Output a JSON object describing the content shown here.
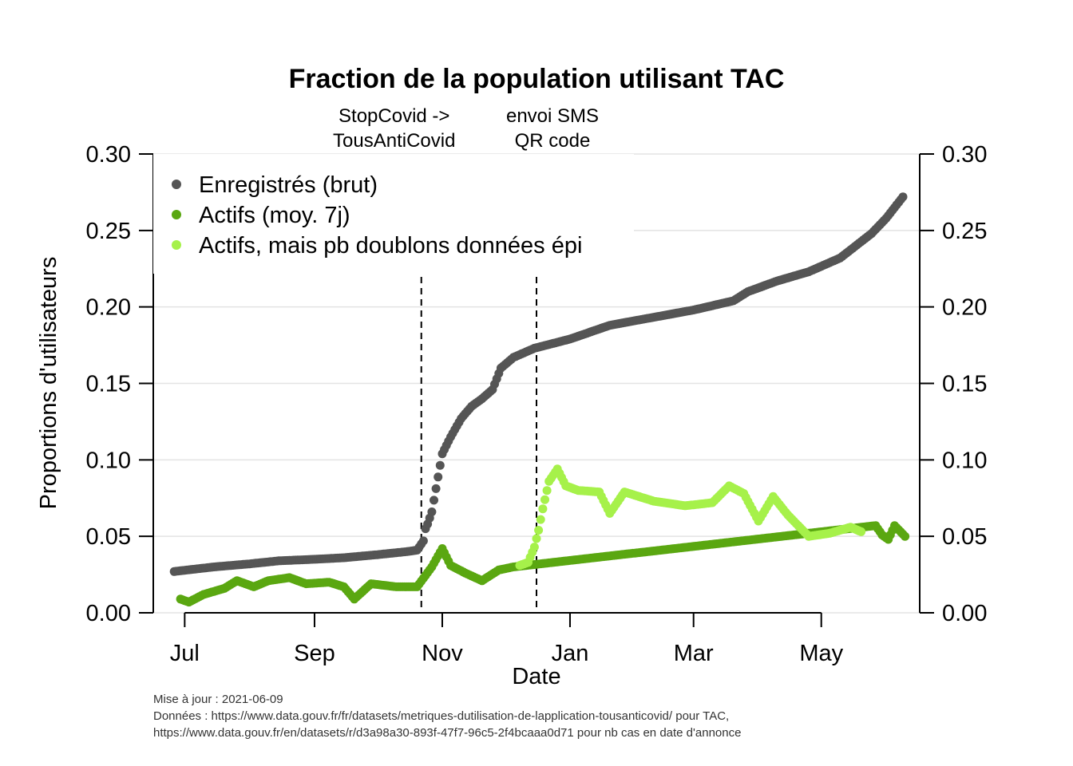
{
  "chart_data": {
    "type": "scatter",
    "title": "Fraction de la population utilisant TAC",
    "xlabel": "Date",
    "ylabel": "Proportions d'utilisateurs",
    "x_range": [
      "2020-06-16",
      "2021-06-17"
    ],
    "ylim": [
      0,
      0.3
    ],
    "y_ticks": [
      "0.00",
      "0.05",
      "0.10",
      "0.15",
      "0.20",
      "0.25",
      "0.30"
    ],
    "x_ticks": [
      {
        "date": "2020-07-01",
        "label": "Jul"
      },
      {
        "date": "2020-09-01",
        "label": "Sep"
      },
      {
        "date": "2020-11-01",
        "label": "Nov"
      },
      {
        "date": "2021-01-01",
        "label": "Jan"
      },
      {
        "date": "2021-03-01",
        "label": "Mar"
      },
      {
        "date": "2021-05-01",
        "label": "May"
      }
    ],
    "grid": "horizontal",
    "legend_position": "top-left",
    "events": [
      {
        "date": "2020-10-22",
        "label_lines": [
          "StopCovid ->",
          "TousAntiCovid"
        ]
      },
      {
        "date": "2020-12-16",
        "label_lines": [
          "envoi SMS",
          "QR code"
        ]
      }
    ],
    "series": [
      {
        "name": "Enregistrés (brut)",
        "color": "#555555",
        "points": [
          [
            "2020-06-26",
            0.027
          ],
          [
            "2020-07-15",
            0.03
          ],
          [
            "2020-08-01",
            0.032
          ],
          [
            "2020-08-15",
            0.034
          ],
          [
            "2020-09-01",
            0.035
          ],
          [
            "2020-09-15",
            0.036
          ],
          [
            "2020-10-01",
            0.038
          ],
          [
            "2020-10-15",
            0.04
          ],
          [
            "2020-10-20",
            0.041
          ],
          [
            "2020-10-23",
            0.047
          ],
          [
            "2020-10-24",
            0.055
          ],
          [
            "2020-10-25",
            0.058
          ],
          [
            "2020-10-27",
            0.066
          ],
          [
            "2020-11-01",
            0.104
          ],
          [
            "2020-11-05",
            0.115
          ],
          [
            "2020-11-10",
            0.127
          ],
          [
            "2020-11-15",
            0.135
          ],
          [
            "2020-11-20",
            0.14
          ],
          [
            "2020-11-25",
            0.146
          ],
          [
            "2020-11-29",
            0.16
          ],
          [
            "2020-12-05",
            0.167
          ],
          [
            "2020-12-15",
            0.173
          ],
          [
            "2021-01-01",
            0.179
          ],
          [
            "2021-01-20",
            0.188
          ],
          [
            "2021-02-01",
            0.191
          ],
          [
            "2021-03-01",
            0.198
          ],
          [
            "2021-03-20",
            0.204
          ],
          [
            "2021-03-27",
            0.21
          ],
          [
            "2021-04-10",
            0.217
          ],
          [
            "2021-04-25",
            0.223
          ],
          [
            "2021-05-10",
            0.232
          ],
          [
            "2021-05-25",
            0.248
          ],
          [
            "2021-06-01",
            0.258
          ],
          [
            "2021-06-09",
            0.272
          ]
        ]
      },
      {
        "name": "Actifs (moy. 7j)",
        "color": "#5aa711",
        "points": [
          [
            "2020-06-29",
            0.009
          ],
          [
            "2020-07-03",
            0.007
          ],
          [
            "2020-07-10",
            0.012
          ],
          [
            "2020-07-20",
            0.016
          ],
          [
            "2020-07-26",
            0.021
          ],
          [
            "2020-08-03",
            0.017
          ],
          [
            "2020-08-10",
            0.021
          ],
          [
            "2020-08-20",
            0.023
          ],
          [
            "2020-08-28",
            0.019
          ],
          [
            "2020-09-08",
            0.02
          ],
          [
            "2020-09-15",
            0.017
          ],
          [
            "2020-09-20",
            0.009
          ],
          [
            "2020-09-28",
            0.019
          ],
          [
            "2020-10-10",
            0.017
          ],
          [
            "2020-10-20",
            0.017
          ],
          [
            "2020-10-27",
            0.03
          ],
          [
            "2020-11-01",
            0.042
          ],
          [
            "2020-11-05",
            0.031
          ],
          [
            "2020-11-12",
            0.026
          ],
          [
            "2020-11-20",
            0.021
          ],
          [
            "2020-11-28",
            0.028
          ],
          [
            "2020-12-05",
            0.03
          ],
          [
            "2021-05-27",
            0.057
          ],
          [
            "2021-05-30",
            0.051
          ],
          [
            "2021-06-02",
            0.048
          ],
          [
            "2021-06-05",
            0.057
          ],
          [
            "2021-06-10",
            0.05
          ]
        ]
      },
      {
        "name": "Actifs, mais pb doublons données épi",
        "color": "#a6f14a",
        "points": [
          [
            "2020-12-08",
            0.031
          ],
          [
            "2020-12-12",
            0.033
          ],
          [
            "2020-12-15",
            0.043
          ],
          [
            "2020-12-17",
            0.054
          ],
          [
            "2020-12-19",
            0.068
          ],
          [
            "2020-12-22",
            0.086
          ],
          [
            "2020-12-26",
            0.094
          ],
          [
            "2020-12-30",
            0.083
          ],
          [
            "2021-01-05",
            0.08
          ],
          [
            "2021-01-15",
            0.079
          ],
          [
            "2021-01-20",
            0.065
          ],
          [
            "2021-01-27",
            0.079
          ],
          [
            "2021-02-10",
            0.073
          ],
          [
            "2021-02-25",
            0.07
          ],
          [
            "2021-03-10",
            0.072
          ],
          [
            "2021-03-18",
            0.083
          ],
          [
            "2021-03-25",
            0.078
          ],
          [
            "2021-04-01",
            0.06
          ],
          [
            "2021-04-08",
            0.076
          ],
          [
            "2021-04-15",
            0.064
          ],
          [
            "2021-04-25",
            0.05
          ],
          [
            "2021-05-05",
            0.052
          ],
          [
            "2021-05-15",
            0.056
          ],
          [
            "2021-05-20",
            0.053
          ]
        ]
      }
    ]
  },
  "footer": {
    "line1": "Mise à jour : 2021-06-09",
    "line2": "Données : https://www.data.gouv.fr/fr/datasets/metriques-dutilisation-de-lapplication-tousanticovid/ pour TAC,",
    "line3": "https://www.data.gouv.fr/en/datasets/r/d3a98a30-893f-47f7-96c5-2f4bcaaa0d71 pour nb cas en date d'annonce"
  }
}
